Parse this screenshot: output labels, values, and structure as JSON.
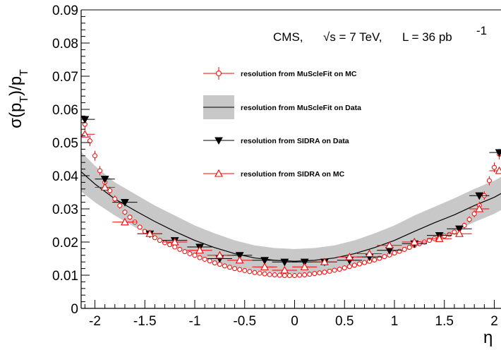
{
  "chart_data": {
    "type": "scatter",
    "title": "",
    "xlabel": "η",
    "ylabel": "σ(p_T)/p_T",
    "xlim": [
      -2.15,
      2.15
    ],
    "ylim": [
      0,
      0.09
    ],
    "x_ticks": [
      "-2",
      "-1.5",
      "-1",
      "-0.5",
      "0",
      "0.5",
      "1",
      "1.5",
      "2"
    ],
    "y_ticks": [
      "0",
      "0.01",
      "0.02",
      "0.03",
      "0.04",
      "0.05",
      "0.06",
      "0.07",
      "0.08",
      "0.09"
    ],
    "annotation": {
      "experiment": "CMS,",
      "energy_prefix": "√s = 7 TeV,",
      "lumi_prefix": "L = 36 pb",
      "lumi_exp": "-1"
    },
    "legend_position": "top-center",
    "grid": false,
    "series": [
      {
        "name": "resolution from MuScleFit on MC",
        "color": "#ff0000",
        "marker": "open-circle",
        "x": [
          -2.1,
          -2.05,
          -2.0,
          -1.95,
          -1.9,
          -1.85,
          -1.8,
          -1.75,
          -1.7,
          -1.65,
          -1.6,
          -1.55,
          -1.5,
          -1.45,
          -1.4,
          -1.35,
          -1.3,
          -1.25,
          -1.2,
          -1.15,
          -1.1,
          -1.05,
          -1.0,
          -0.95,
          -0.9,
          -0.85,
          -0.8,
          -0.75,
          -0.7,
          -0.65,
          -0.6,
          -0.55,
          -0.5,
          -0.45,
          -0.4,
          -0.35,
          -0.3,
          -0.25,
          -0.2,
          -0.15,
          -0.1,
          -0.05,
          0.0,
          0.05,
          0.1,
          0.15,
          0.2,
          0.25,
          0.3,
          0.35,
          0.4,
          0.45,
          0.5,
          0.55,
          0.6,
          0.65,
          0.7,
          0.75,
          0.8,
          0.85,
          0.9,
          0.95,
          1.0,
          1.05,
          1.1,
          1.15,
          1.2,
          1.25,
          1.3,
          1.35,
          1.4,
          1.45,
          1.5,
          1.55,
          1.6,
          1.65,
          1.7,
          1.75,
          1.8,
          1.85,
          1.9,
          1.95,
          2.0,
          2.05,
          2.1
        ],
        "y": [
          0.0555,
          0.0505,
          0.046,
          0.0415,
          0.038,
          0.0355,
          0.033,
          0.031,
          0.029,
          0.0275,
          0.026,
          0.0245,
          0.0232,
          0.0222,
          0.0213,
          0.0205,
          0.0198,
          0.0192,
          0.0185,
          0.0178,
          0.0171,
          0.0165,
          0.016,
          0.0153,
          0.0148,
          0.0143,
          0.0137,
          0.0133,
          0.0128,
          0.0124,
          0.012,
          0.0117,
          0.0114,
          0.0111,
          0.0108,
          0.0106,
          0.0104,
          0.0102,
          0.0101,
          0.01,
          0.0099,
          0.0099,
          0.0099,
          0.01,
          0.0101,
          0.0103,
          0.0105,
          0.0107,
          0.0109,
          0.0112,
          0.0115,
          0.0118,
          0.0122,
          0.0126,
          0.013,
          0.0134,
          0.0138,
          0.0142,
          0.0146,
          0.0151,
          0.0156,
          0.0161,
          0.0167,
          0.0172,
          0.0178,
          0.0184,
          0.019,
          0.0195,
          0.02,
          0.0205,
          0.021,
          0.0214,
          0.0218,
          0.0223,
          0.023,
          0.024,
          0.025,
          0.0268,
          0.0285,
          0.031,
          0.034,
          0.0385,
          0.0425,
          0.0465,
          0.0515
        ]
      },
      {
        "name": "resolution from MuScleFit on Data",
        "color": "#000000",
        "band_color": "#c8c8c8",
        "marker": "line+band",
        "x": [
          -2.15,
          -2.0,
          -1.8,
          -1.6,
          -1.4,
          -1.2,
          -1.0,
          -0.8,
          -0.6,
          -0.4,
          -0.2,
          0.0,
          0.2,
          0.4,
          0.6,
          0.8,
          1.0,
          1.2,
          1.4,
          1.6,
          1.8,
          2.0,
          2.15
        ],
        "y": [
          0.0415,
          0.0375,
          0.033,
          0.0295,
          0.0262,
          0.0232,
          0.0205,
          0.0183,
          0.0165,
          0.0152,
          0.0145,
          0.0142,
          0.0145,
          0.0152,
          0.0165,
          0.0183,
          0.0205,
          0.0232,
          0.0258,
          0.0282,
          0.031,
          0.0335,
          0.036
        ],
        "band_low": [
          0.0355,
          0.032,
          0.028,
          0.0245,
          0.0215,
          0.0185,
          0.016,
          0.014,
          0.0125,
          0.0114,
          0.0108,
          0.0105,
          0.0108,
          0.0114,
          0.0125,
          0.014,
          0.016,
          0.0185,
          0.021,
          0.0232,
          0.026,
          0.0285,
          0.031
        ],
        "band_high": [
          0.0475,
          0.043,
          0.038,
          0.0345,
          0.031,
          0.028,
          0.025,
          0.0226,
          0.0205,
          0.019,
          0.0182,
          0.0179,
          0.0182,
          0.019,
          0.0205,
          0.0226,
          0.025,
          0.028,
          0.0306,
          0.0332,
          0.036,
          0.0385,
          0.041
        ]
      },
      {
        "name": "resolution from SIDRA on Data",
        "color": "#000000",
        "marker": "filled-triangle-down",
        "x": [
          -2.1,
          -1.9,
          -1.7,
          -1.45,
          -1.2,
          -0.95,
          -0.75,
          -0.55,
          -0.3,
          -0.1,
          0.1,
          0.3,
          0.55,
          0.75,
          0.95,
          1.2,
          1.45,
          1.65,
          1.85,
          2.05
        ],
        "y": [
          0.057,
          0.039,
          0.032,
          0.0225,
          0.0205,
          0.0185,
          0.015,
          0.016,
          0.0145,
          0.014,
          0.014,
          0.014,
          0.0145,
          0.0155,
          0.0175,
          0.0195,
          0.022,
          0.024,
          0.034,
          0.047
        ]
      },
      {
        "name": "resolution from SIDRA on MC",
        "color": "#ff0000",
        "marker": "open-triangle-up",
        "x": [
          -2.1,
          -1.9,
          -1.7,
          -1.45,
          -1.2,
          -0.95,
          -0.75,
          -0.55,
          -0.3,
          -0.1,
          0.1,
          0.3,
          0.55,
          0.75,
          0.95,
          1.2,
          1.45,
          1.65,
          1.85,
          2.05
        ],
        "y": [
          0.0525,
          0.0365,
          0.026,
          0.0225,
          0.02,
          0.0175,
          0.016,
          0.0145,
          0.0125,
          0.0115,
          0.0125,
          0.014,
          0.0155,
          0.0165,
          0.019,
          0.02,
          0.021,
          0.0225,
          0.03,
          0.0415
        ]
      }
    ]
  }
}
